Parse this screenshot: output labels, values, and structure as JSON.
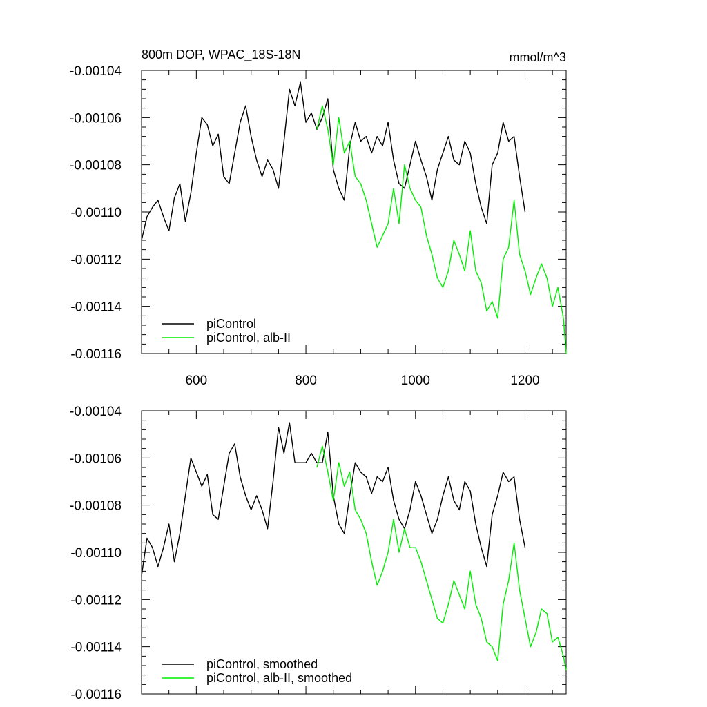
{
  "chart_data": [
    {
      "type": "line",
      "title": "800m DOP, WPAC_18S-18N",
      "units": "mmol/m^3",
      "xlim": [
        500,
        1275
      ],
      "ylim": [
        -0.00116,
        -0.00104
      ],
      "x_ticks": [
        600,
        800,
        1000,
        1200
      ],
      "x_tick_labels": [
        "600",
        "800",
        "1000",
        "1200"
      ],
      "y_ticks": [
        -0.00104,
        -0.00106,
        -0.00108,
        -0.0011,
        -0.00112,
        -0.00114,
        -0.00116
      ],
      "y_tick_labels": [
        "-0.00104",
        "-0.00106",
        "-0.00108",
        "-0.00110",
        "-0.00112",
        "-0.00114",
        "-0.00116"
      ],
      "legend_position": "bottom-left",
      "grid": false,
      "series": [
        {
          "name": "piControl",
          "color": "#000000",
          "x": [
            500,
            510,
            520,
            530,
            540,
            550,
            560,
            570,
            580,
            590,
            600,
            610,
            620,
            630,
            640,
            650,
            660,
            670,
            680,
            690,
            700,
            710,
            720,
            730,
            740,
            750,
            760,
            770,
            780,
            790,
            800,
            810,
            820,
            830,
            840,
            850,
            860,
            870,
            880,
            890,
            900,
            910,
            920,
            930,
            940,
            950,
            960,
            970,
            980,
            990,
            1000,
            1010,
            1020,
            1030,
            1040,
            1050,
            1060,
            1070,
            1080,
            1090,
            1100,
            1110,
            1120,
            1130,
            1140,
            1150,
            1160,
            1170,
            1180,
            1190,
            1200
          ],
          "values": [
            -0.001112,
            -0.001102,
            -0.001098,
            -0.001095,
            -0.001102,
            -0.001108,
            -0.001094,
            -0.001088,
            -0.001104,
            -0.001092,
            -0.001075,
            -0.00106,
            -0.001063,
            -0.001072,
            -0.001067,
            -0.001085,
            -0.001088,
            -0.001075,
            -0.001062,
            -0.001055,
            -0.001068,
            -0.001078,
            -0.001085,
            -0.001078,
            -0.001082,
            -0.00109,
            -0.00107,
            -0.001048,
            -0.001055,
            -0.001045,
            -0.001062,
            -0.001058,
            -0.001065,
            -0.00106,
            -0.001052,
            -0.001082,
            -0.00109,
            -0.001095,
            -0.001072,
            -0.001062,
            -0.00107,
            -0.001068,
            -0.001075,
            -0.001068,
            -0.001072,
            -0.001062,
            -0.001078,
            -0.001088,
            -0.00109,
            -0.00108,
            -0.00107,
            -0.001078,
            -0.001085,
            -0.001095,
            -0.001082,
            -0.001075,
            -0.001068,
            -0.001078,
            -0.00108,
            -0.00107,
            -0.001075,
            -0.001088,
            -0.001098,
            -0.001105,
            -0.00108,
            -0.001075,
            -0.001062,
            -0.00107,
            -0.001068,
            -0.001085,
            -0.0011
          ]
        },
        {
          "name": "piControl, alb-II",
          "color": "#00ee00",
          "x": [
            820,
            830,
            840,
            850,
            860,
            870,
            880,
            890,
            900,
            910,
            920,
            930,
            940,
            950,
            960,
            970,
            980,
            990,
            1000,
            1010,
            1020,
            1030,
            1040,
            1050,
            1060,
            1070,
            1080,
            1090,
            1100,
            1110,
            1120,
            1130,
            1140,
            1150,
            1160,
            1170,
            1180,
            1190,
            1200,
            1210,
            1220,
            1230,
            1240,
            1250,
            1260,
            1270,
            1275
          ],
          "values": [
            -0.001065,
            -0.001055,
            -0.001065,
            -0.00108,
            -0.00106,
            -0.001075,
            -0.00107,
            -0.001085,
            -0.001088,
            -0.001095,
            -0.001105,
            -0.001115,
            -0.00111,
            -0.001105,
            -0.00109,
            -0.001105,
            -0.00108,
            -0.00109,
            -0.001095,
            -0.001098,
            -0.00111,
            -0.001118,
            -0.001128,
            -0.001132,
            -0.001125,
            -0.001112,
            -0.001118,
            -0.001125,
            -0.001108,
            -0.001125,
            -0.00113,
            -0.001142,
            -0.001138,
            -0.001145,
            -0.00112,
            -0.001115,
            -0.001095,
            -0.001118,
            -0.001125,
            -0.001135,
            -0.001128,
            -0.001122,
            -0.001128,
            -0.00114,
            -0.001132,
            -0.001145,
            -0.00116
          ]
        }
      ]
    },
    {
      "type": "line",
      "title": "",
      "xlim": [
        500,
        1275
      ],
      "ylim": [
        -0.00116,
        -0.00104
      ],
      "x_ticks": [
        600,
        800,
        1000,
        1200
      ],
      "x_tick_labels": [],
      "y_ticks": [
        -0.00104,
        -0.00106,
        -0.00108,
        -0.0011,
        -0.00112,
        -0.00114,
        -0.00116
      ],
      "y_tick_labels": [
        "-0.00104",
        "-0.00106",
        "-0.00108",
        "-0.00110",
        "-0.00112",
        "-0.00114",
        "-0.00116"
      ],
      "legend_position": "bottom-left",
      "grid": false,
      "series": [
        {
          "name": "piControl, smoothed",
          "color": "#000000",
          "x": [
            500,
            510,
            520,
            530,
            540,
            550,
            560,
            570,
            580,
            590,
            600,
            610,
            620,
            630,
            640,
            650,
            660,
            670,
            680,
            690,
            700,
            710,
            720,
            730,
            740,
            750,
            760,
            770,
            780,
            790,
            800,
            810,
            820,
            830,
            840,
            850,
            860,
            870,
            880,
            890,
            900,
            910,
            920,
            930,
            940,
            950,
            960,
            970,
            980,
            990,
            1000,
            1010,
            1020,
            1030,
            1040,
            1050,
            1060,
            1070,
            1080,
            1090,
            1100,
            1110,
            1120,
            1130,
            1140,
            1150,
            1160,
            1170,
            1180,
            1190,
            1200
          ],
          "values": [
            -0.00111,
            -0.001094,
            -0.001098,
            -0.001106,
            -0.001098,
            -0.001088,
            -0.001104,
            -0.001092,
            -0.001076,
            -0.00106,
            -0.001066,
            -0.001072,
            -0.001067,
            -0.001084,
            -0.001086,
            -0.001072,
            -0.001058,
            -0.001054,
            -0.001068,
            -0.001076,
            -0.001082,
            -0.001076,
            -0.001082,
            -0.00109,
            -0.00107,
            -0.001047,
            -0.001058,
            -0.001045,
            -0.001062,
            -0.001062,
            -0.001062,
            -0.001058,
            -0.001062,
            -0.001062,
            -0.001049,
            -0.001076,
            -0.001088,
            -0.001092,
            -0.001076,
            -0.001062,
            -0.001066,
            -0.001068,
            -0.001075,
            -0.001068,
            -0.00107,
            -0.001064,
            -0.001078,
            -0.001086,
            -0.00109,
            -0.001082,
            -0.00107,
            -0.001076,
            -0.001084,
            -0.001092,
            -0.001086,
            -0.001076,
            -0.001068,
            -0.001078,
            -0.001082,
            -0.00107,
            -0.001074,
            -0.001088,
            -0.001098,
            -0.001106,
            -0.001084,
            -0.001076,
            -0.001066,
            -0.00107,
            -0.001068,
            -0.001086,
            -0.001098
          ]
        },
        {
          "name": "piControl, alb-II, smoothed",
          "color": "#00ee00",
          "x": [
            820,
            830,
            840,
            850,
            860,
            870,
            880,
            890,
            900,
            910,
            920,
            930,
            940,
            950,
            960,
            970,
            980,
            990,
            1000,
            1010,
            1020,
            1030,
            1040,
            1050,
            1060,
            1070,
            1080,
            1090,
            1100,
            1110,
            1120,
            1130,
            1140,
            1150,
            1160,
            1170,
            1180,
            1190,
            1200,
            1210,
            1220,
            1230,
            1240,
            1250,
            1260,
            1270,
            1275
          ],
          "values": [
            -0.001064,
            -0.001055,
            -0.001066,
            -0.001078,
            -0.001062,
            -0.001072,
            -0.001066,
            -0.001082,
            -0.001086,
            -0.001092,
            -0.001104,
            -0.001114,
            -0.001108,
            -0.0011,
            -0.001086,
            -0.0011,
            -0.00109,
            -0.001098,
            -0.001098,
            -0.001104,
            -0.001112,
            -0.00112,
            -0.001128,
            -0.00113,
            -0.001122,
            -0.001112,
            -0.001118,
            -0.001124,
            -0.001108,
            -0.001122,
            -0.001128,
            -0.001138,
            -0.00114,
            -0.001146,
            -0.001122,
            -0.001112,
            -0.001096,
            -0.001116,
            -0.001128,
            -0.00114,
            -0.001134,
            -0.001124,
            -0.001126,
            -0.001138,
            -0.001136,
            -0.001144,
            -0.00115
          ]
        }
      ]
    }
  ]
}
